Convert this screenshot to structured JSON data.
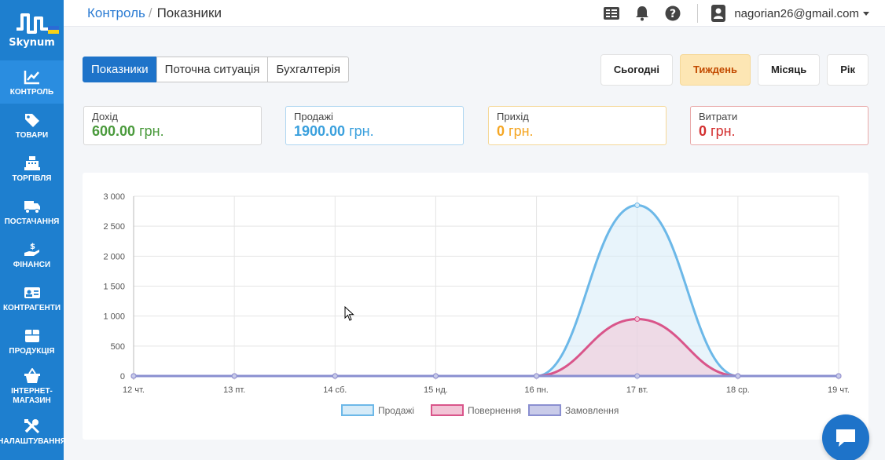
{
  "app": {
    "name": "Skynum"
  },
  "colors": {
    "sidebar": "#1e7fcf",
    "primary": "#1e73c9",
    "income": "#4a9a3c",
    "sales": "#3aa0dd",
    "arrival": "#f5a623",
    "expenses": "#d32f2f",
    "active_period_bg": "#fde6b4",
    "active_period_text": "#c24a00"
  },
  "sidebar": {
    "items": [
      {
        "label": "КОНТРОЛЬ",
        "icon": "chart-line-icon"
      },
      {
        "label": "ТОВАРИ",
        "icon": "tags-icon"
      },
      {
        "label": "ТОРГІВЛЯ",
        "icon": "cash-register-icon"
      },
      {
        "label": "ПОСТАЧАННЯ",
        "icon": "truck-icon"
      },
      {
        "label": "ФІНАНСИ",
        "icon": "hand-dollar-icon"
      },
      {
        "label": "КОНТРАГЕНТИ",
        "icon": "id-card-icon"
      },
      {
        "label": "ПРОДУКЦІЯ",
        "icon": "box-icon"
      },
      {
        "label": "ІНТЕРНЕТ-МАГАЗИН",
        "label_line1": "ІНТЕРНЕТ-",
        "label_line2": "МАГАЗИН",
        "icon": "basket-icon"
      },
      {
        "label": "НАЛАШТУВАННЯ",
        "icon": "tools-icon"
      }
    ]
  },
  "header": {
    "breadcrumb_link": "Контроль",
    "breadcrumb_sep": "/",
    "breadcrumb_current": "Показники",
    "user_email": "nagorian26@gmail.com"
  },
  "tabs": [
    {
      "label": "Показники",
      "active": true
    },
    {
      "label": "Поточна ситуація",
      "active": false
    },
    {
      "label": "Бухгалтерія",
      "active": false
    }
  ],
  "periods": [
    {
      "label": "Сьогодні",
      "active": false
    },
    {
      "label": "Тиждень",
      "active": true
    },
    {
      "label": "Місяць",
      "active": false
    },
    {
      "label": "Рік",
      "active": false
    }
  ],
  "stats": [
    {
      "label": "Дохід",
      "value": "600.00",
      "unit": "грн.",
      "color": "#4a9a3c",
      "border": "#d8d8d8"
    },
    {
      "label": "Продажі",
      "value": "1900.00",
      "unit": "грн.",
      "color": "#3aa0dd",
      "border": "#aed6f1"
    },
    {
      "label": "Прихід",
      "value": "0",
      "unit": "грн.",
      "color": "#f5a623",
      "border": "#f5d898"
    },
    {
      "label": "Витрати",
      "value": "0",
      "unit": "грн.",
      "color": "#d32f2f",
      "border": "#e8a8a8"
    }
  ],
  "chart_data": {
    "type": "area",
    "categories": [
      "12 чт.",
      "13 пт.",
      "14 сб.",
      "15 нд.",
      "16 пн.",
      "17 вт.",
      "18 ср.",
      "19 чт."
    ],
    "y_ticks": [
      "3 000",
      "2 500",
      "2 000",
      "1 500",
      "1 000",
      "500",
      "0"
    ],
    "ylim": [
      0,
      3000
    ],
    "grid": true,
    "legend_position": "bottom",
    "series": [
      {
        "name": "Продажі",
        "values": [
          0,
          0,
          0,
          0,
          0,
          2850,
          0,
          0
        ],
        "color": "#6cb8e8",
        "fill": "#d6ebf8"
      },
      {
        "name": "Повернення",
        "values": [
          0,
          0,
          0,
          0,
          0,
          950,
          0,
          0
        ],
        "color": "#d9558a",
        "fill": "#f2c4d6"
      },
      {
        "name": "Замовлення",
        "values": [
          0,
          0,
          0,
          0,
          0,
          0,
          0,
          0
        ],
        "color": "#8a8fd0",
        "fill": "#c9cbe9"
      }
    ]
  }
}
